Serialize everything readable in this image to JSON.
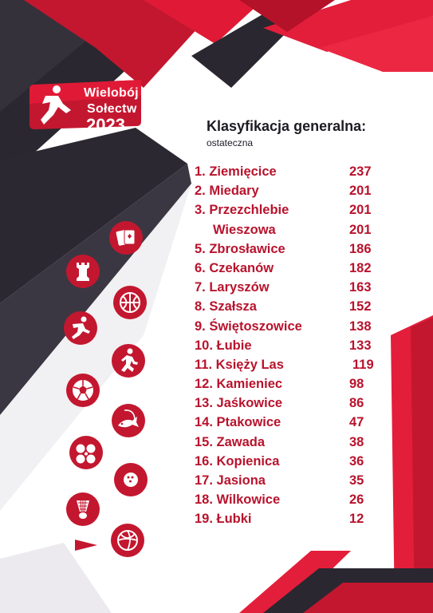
{
  "logo": {
    "line1": "Wielobój",
    "line2": "Sołectw",
    "year": "2023"
  },
  "heading": {
    "title": "Klasyfikacja generalna:",
    "subtitle": "ostateczna"
  },
  "ranking": [
    {
      "name": "1. Ziemięcice",
      "points": "237"
    },
    {
      "name": "2. Miedary",
      "points": "201"
    },
    {
      "name": "3. Przezchlebie",
      "points": "201"
    },
    {
      "name": "Wieszowa",
      "points": "201"
    },
    {
      "name": "5. Zbrosławice",
      "points": "186"
    },
    {
      "name": "6. Czekanów",
      "points": "182"
    },
    {
      "name": "7. Laryszów",
      "points": "163"
    },
    {
      "name": "8. Szałsza",
      "points": "152"
    },
    {
      "name": "9. Świętoszowice",
      "points": "138"
    },
    {
      "name": "10. Łubie",
      "points": "133"
    },
    {
      "name": "11. Księży Las",
      "points": "119"
    },
    {
      "name": "12. Kamieniec",
      "points": "98"
    },
    {
      "name": "13. Jaśkowice",
      "points": "86"
    },
    {
      "name": "14. Ptakowice",
      "points": "47"
    },
    {
      "name": "15. Zawada",
      "points": "38"
    },
    {
      "name": "16. Kopienica",
      "points": "36"
    },
    {
      "name": "17. Jasiona",
      "points": "35"
    },
    {
      "name": "18. Wilkowice",
      "points": "26"
    },
    {
      "name": "19. Łubki",
      "points": "12"
    }
  ],
  "icons": [
    "playing-cards-icon",
    "chess-rook-icon",
    "basketball-icon",
    "runner-kick-icon",
    "runner-icon",
    "football-icon",
    "fishing-icon",
    "petanque-icon",
    "bowling-icon",
    "badminton-icon",
    "volleyball-icon"
  ],
  "colors": {
    "dark": "#23202a",
    "red": "#c3172f",
    "crimson": "#b8132d"
  }
}
